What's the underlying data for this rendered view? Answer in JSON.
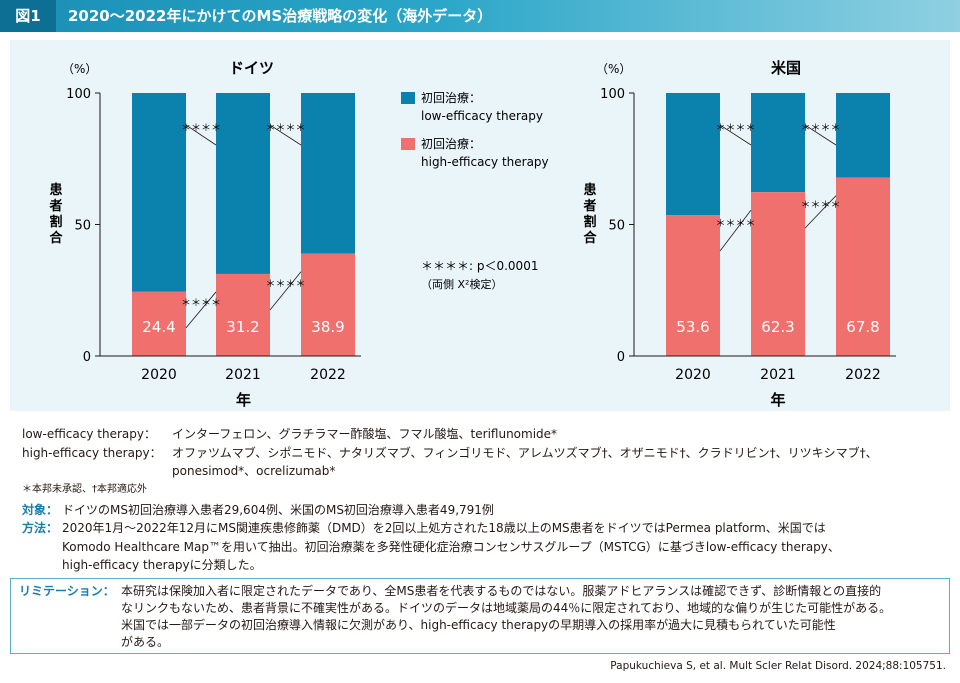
{
  "header": {
    "fig_label": "図1",
    "title": "2020〜2022年にかけてのMS治療戦略の変化（海外データ）"
  },
  "legend": {
    "low_label_1": "初回治療：",
    "low_label_2": "low-efficacy therapy",
    "high_label_1": "初回治療：",
    "high_label_2": "high-efficacy therapy",
    "sig_line_1": "＊＊＊＊: p＜0.0001",
    "sig_line_2": "（両側 Χ²検定）"
  },
  "colors": {
    "low": "#0b82ad",
    "high": "#f0706e"
  },
  "chart_data": [
    {
      "type": "bar",
      "stacked": true,
      "title": "ドイツ",
      "unit": "（%）",
      "ylabel": "患者割合",
      "xlabel": "年",
      "categories": [
        "2020",
        "2021",
        "2022"
      ],
      "ylim": [
        0,
        100
      ],
      "yticks": [
        "0",
        "50",
        "100"
      ],
      "series": [
        {
          "name": "high-efficacy therapy",
          "values": [
            24.4,
            31.2,
            38.9
          ],
          "labels": [
            "24.4",
            "31.2",
            "38.9"
          ]
        },
        {
          "name": "low-efficacy therapy",
          "values": [
            75.6,
            68.8,
            61.1
          ]
        }
      ],
      "significance": "＊＊＊＊"
    },
    {
      "type": "bar",
      "stacked": true,
      "title": "米国",
      "unit": "（%）",
      "ylabel": "患者割合",
      "xlabel": "年",
      "categories": [
        "2020",
        "2021",
        "2022"
      ],
      "ylim": [
        0,
        100
      ],
      "yticks": [
        "0",
        "50",
        "100"
      ],
      "series": [
        {
          "name": "high-efficacy therapy",
          "values": [
            53.6,
            62.3,
            67.8
          ],
          "labels": [
            "53.6",
            "62.3",
            "67.8"
          ]
        },
        {
          "name": "low-efficacy therapy",
          "values": [
            46.4,
            37.7,
            32.2
          ]
        }
      ],
      "significance": "＊＊＊＊"
    }
  ],
  "therapy_list": {
    "low_key": "low-efficacy therapy：",
    "low_value": "インターフェロン、グラチラマー酢酸塩、フマル酸塩、teriflunomide*",
    "high_key": "high-efficacy therapy：",
    "high_value_1": "オファツムマブ、シポニモド、ナタリズマブ、フィンゴリモド、アレムツズマブ†、オザニモド†、クラドリビン†、リツキシマブ†、",
    "high_value_2": "ponesimod*、ocrelizumab*",
    "footnote": "＊本邦未承認、†本邦適応外"
  },
  "study": {
    "target_key": "対象：",
    "target_value": "ドイツのMS初回治療導入患者29,604例、米国のMS初回治療導入患者49,791例",
    "method_key": "方法：",
    "method_1": "2020年1月〜2022年12月にMS関連疾患修飾薬（DMD）を2回以上処方された18歳以上のMS患者をドイツではPermea platform、米国では",
    "method_2": "Komodo Healthcare Map™を用いて抽出。初回治療薬を多発性硬化症治療コンセンサスグループ（MSTCG）に基づきlow-efficacy therapy、",
    "method_3": "high-efficacy therapyに分類した。"
  },
  "limitation": {
    "key": "リミテーション：",
    "line_1": "本研究は保険加入者に限定されたデータであり、全MS患者を代表するものではない。服薬アドヒアランスは確認できず、診断情報との直接的",
    "line_2": "なリンクもないため、患者背景に不確実性がある。ドイツのデータは地域薬局の44％に限定されており、地域的な偏りが生じた可能性がある。",
    "line_3": "米国では一部データの初回治療導入情報に欠測があり、high-efficacy therapyの早期導入の採用率が過大に見積もられていた可能性",
    "line_4": "がある。"
  },
  "citation": "Papukuchieva S, et al. Mult Scler Relat Disord. 2024;88:105751."
}
